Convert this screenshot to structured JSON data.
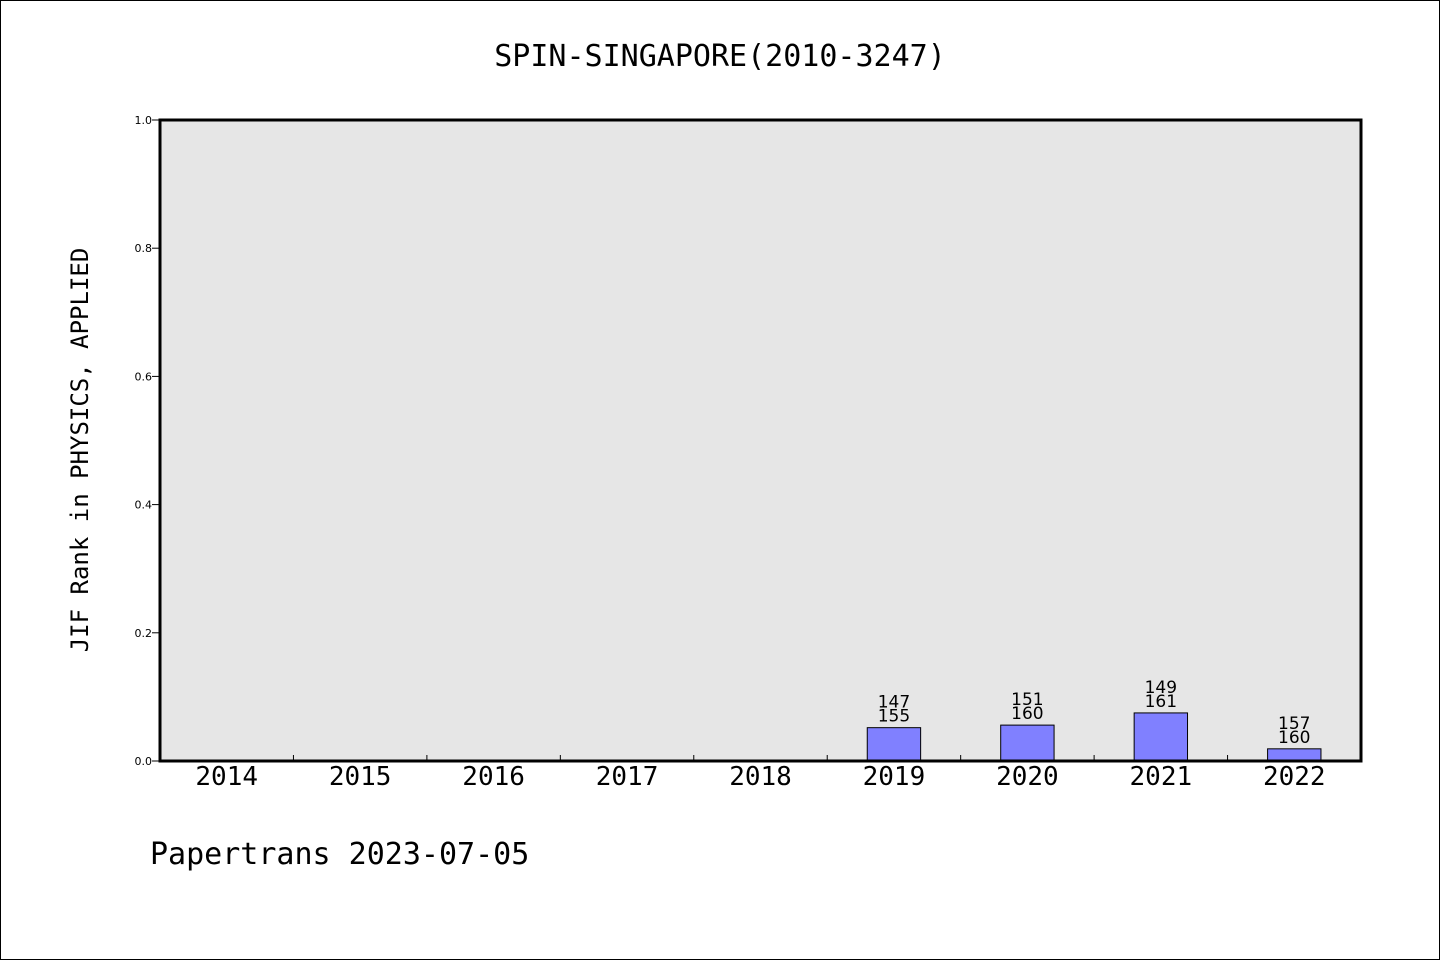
{
  "chart_data": {
    "type": "bar",
    "title": "SPIN-SINGAPORE(2010-3247)",
    "ylabel": "JIF Rank in PHYSICS, APPLIED",
    "xlabel": "",
    "ylim": [
      0,
      1.0
    ],
    "yticks": [
      "0.0",
      "0.2",
      "0.4",
      "0.6",
      "0.8",
      "1.0"
    ],
    "categories": [
      "2014",
      "2015",
      "2016",
      "2017",
      "2018",
      "2019",
      "2020",
      "2021",
      "2022"
    ],
    "values": [
      null,
      null,
      null,
      null,
      null,
      0.052,
      0.056,
      0.075,
      0.019
    ],
    "rank_labels": [
      "",
      "",
      "",
      "",
      "",
      "147",
      "151",
      "149",
      "157"
    ],
    "total_labels": [
      "",
      "",
      "",
      "",
      "",
      "155",
      "160",
      "161",
      "160"
    ],
    "grid": false,
    "bar_color": "#8080ff",
    "plot_bg": "#e6e6e6"
  },
  "footer": "Papertrans 2023-07-05"
}
